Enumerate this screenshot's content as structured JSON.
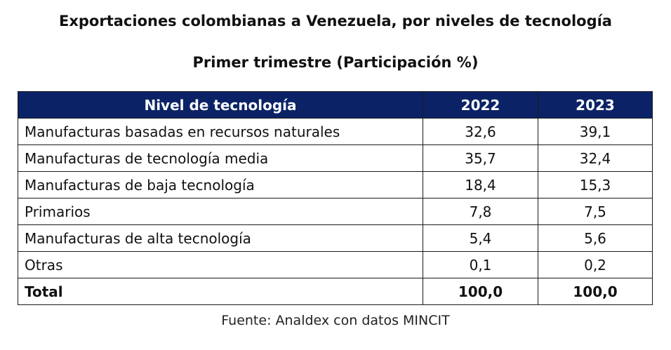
{
  "title": "Exportaciones colombianas a Venezuela, por niveles de tecnología",
  "subtitle": "Primer trimestre (Participación %)",
  "header": {
    "col0": "Nivel de tecnología",
    "col1": "2022",
    "col2": "2023",
    "background_color": "#0b2366"
  },
  "chart_data": {
    "type": "table",
    "title": "Exportaciones colombianas a Venezuela, por niveles de tecnología",
    "subtitle": "Primer trimestre (Participación %)",
    "columns": [
      "Nivel de tecnología",
      "2022",
      "2023"
    ],
    "rows": [
      {
        "label": "Manufacturas basadas en recursos naturales",
        "v2022": "32,6",
        "v2023": "39,1"
      },
      {
        "label": "Manufacturas de tecnología media",
        "v2022": "35,7",
        "v2023": "32,4"
      },
      {
        "label": "Manufacturas de baja tecnología",
        "v2022": "18,4",
        "v2023": "15,3"
      },
      {
        "label": "Primarios",
        "v2022": "7,8",
        "v2023": "7,5"
      },
      {
        "label": "Manufacturas de alta tecnología",
        "v2022": "5,4",
        "v2023": "5,6"
      },
      {
        "label": "Otras",
        "v2022": "0,1",
        "v2023": "0,2"
      },
      {
        "label": "Total",
        "v2022": "100,0",
        "v2023": "100,0"
      }
    ]
  },
  "source": "Fuente: Analdex con datos MINCIT"
}
